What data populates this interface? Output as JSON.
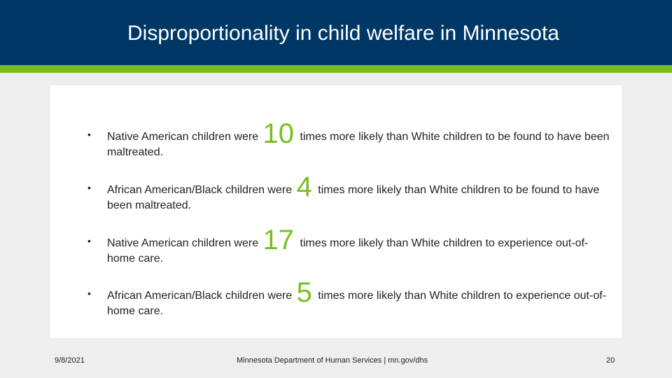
{
  "header": {
    "title": "Disproportionality in child welfare in Minnesota",
    "bg_color": "#003865",
    "accent_color": "#78be20"
  },
  "bullets": [
    {
      "bullet": "•",
      "before": "Native American children were",
      "number": "10",
      "after": "times more likely than White children to be found to have been maltreated."
    },
    {
      "bullet": "•",
      "before": "African American/Black children were",
      "number": "4",
      "after": "times more likely than White children to be found to have been maltreated."
    },
    {
      "bullet": "•",
      "before": "Native American children were",
      "number": "17",
      "after": "times more likely than White children to experience out-of-home care."
    },
    {
      "bullet": "•",
      "before": "African American/Black children were",
      "number": "5",
      "after": "times more likely than White children to experience out-of-home care."
    }
  ],
  "footer": {
    "date": "9/8/2021",
    "center": "Minnesota Department of Human Services | mn.gov/dhs",
    "page": "20"
  }
}
